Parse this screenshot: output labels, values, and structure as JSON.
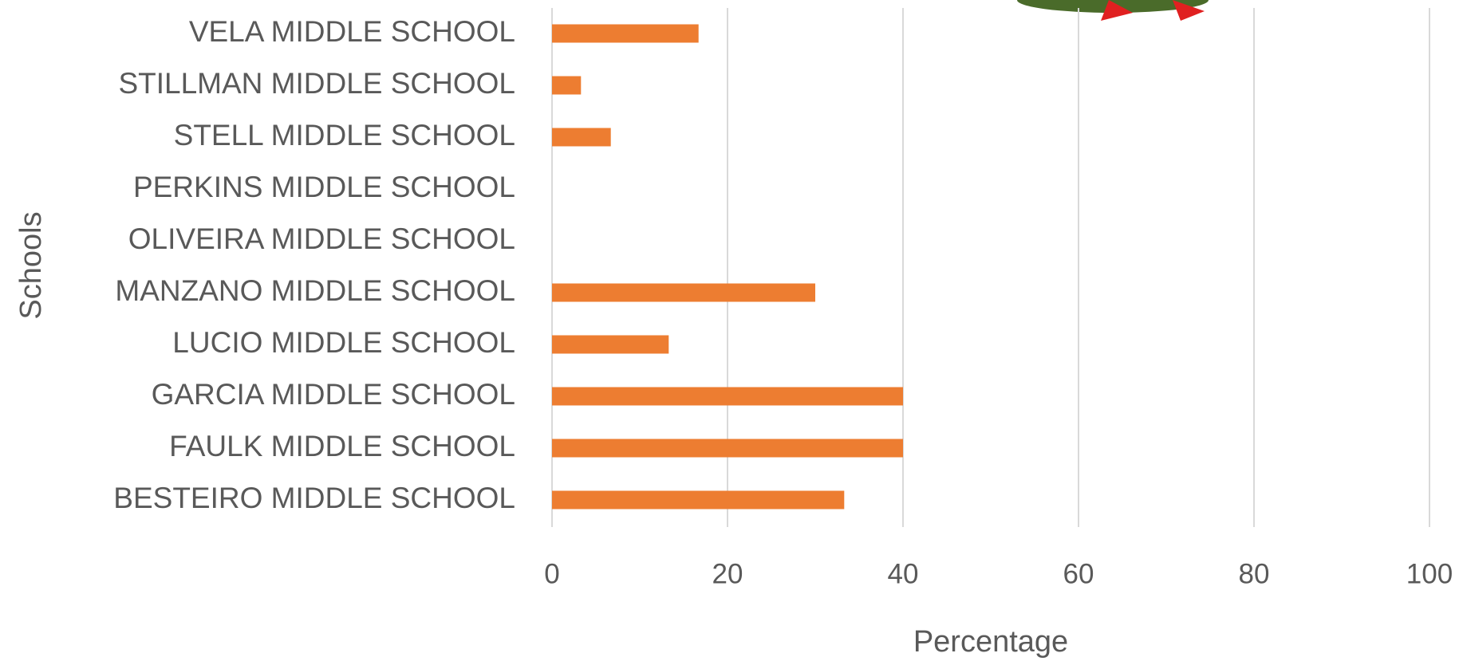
{
  "chart_data": {
    "type": "hbar",
    "categories": [
      "VELA MIDDLE SCHOOL",
      "STILLMAN MIDDLE SCHOOL",
      "STELL MIDDLE SCHOOL",
      "PERKINS MIDDLE SCHOOL",
      "OLIVEIRA MIDDLE SCHOOL",
      "MANZANO MIDDLE SCHOOL",
      "LUCIO MIDDLE SCHOOL",
      "GARCIA MIDDLE SCHOOL",
      "FAULK MIDDLE SCHOOL",
      "BESTEIRO MIDDLE SCHOOL"
    ],
    "values": [
      16.7,
      3.3,
      6.7,
      0,
      0,
      30,
      13.3,
      40,
      40,
      33.3
    ],
    "color": "#ed7d31",
    "xlim": [
      0,
      100
    ],
    "xticks": [
      0,
      20,
      40,
      60,
      80,
      100
    ],
    "grid": true,
    "x_label": "Percentage",
    "y_label": "Schools"
  }
}
